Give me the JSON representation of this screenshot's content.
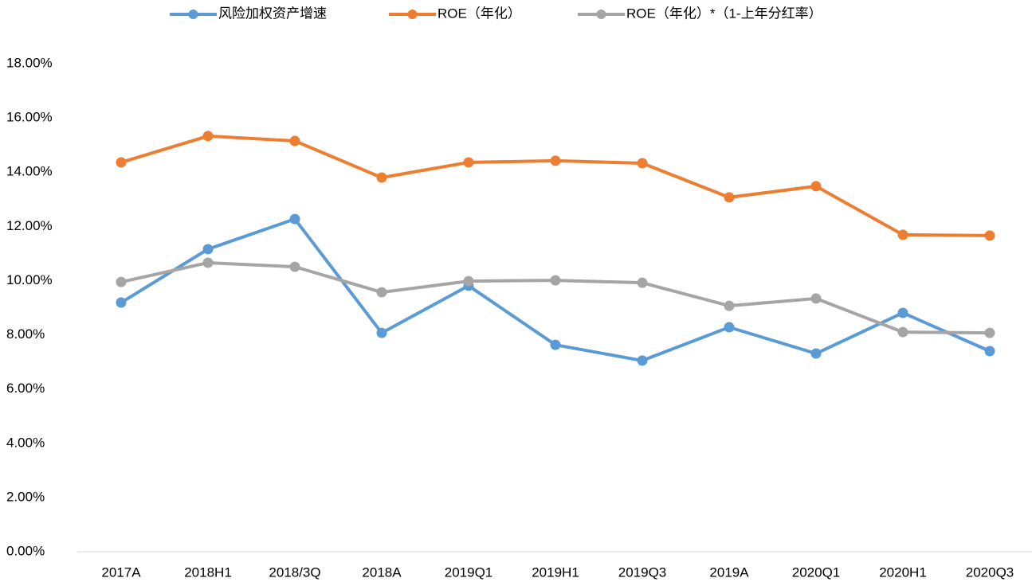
{
  "chart_data": {
    "type": "line",
    "categories": [
      "2017A",
      "2018H1",
      "2018/3Q",
      "2018A",
      "2019Q1",
      "2019H1",
      "2019Q3",
      "2019A",
      "2020Q1",
      "2020H1",
      "2020Q3"
    ],
    "series": [
      {
        "name": "风险加权资产增速",
        "color": "#5b9bd5",
        "values": [
          9.19,
          11.16,
          12.27,
          8.07,
          9.81,
          7.63,
          7.05,
          8.28,
          7.31,
          8.81,
          7.4
        ]
      },
      {
        "name": "ROE（年化）",
        "color": "#ed7d31",
        "values": [
          14.36,
          15.33,
          15.15,
          13.8,
          14.36,
          14.42,
          14.33,
          13.07,
          13.48,
          11.69,
          11.66
        ]
      },
      {
        "name": "ROE（年化）*（1-上年分红率）",
        "color": "#a5a5a5",
        "values": [
          9.95,
          10.66,
          10.51,
          9.57,
          9.98,
          10.01,
          9.92,
          9.07,
          9.34,
          8.1,
          8.07
        ]
      }
    ],
    "ylim": [
      0,
      18
    ],
    "yticks": [
      {
        "value": 0,
        "label": "0.00%"
      },
      {
        "value": 2,
        "label": "2.00%"
      },
      {
        "value": 4,
        "label": "4.00%"
      },
      {
        "value": 6,
        "label": "6.00%"
      },
      {
        "value": 8,
        "label": "8.00%"
      },
      {
        "value": 10,
        "label": "10.00%"
      },
      {
        "value": 12,
        "label": "12.00%"
      },
      {
        "value": 14,
        "label": "14.00%"
      },
      {
        "value": 16,
        "label": "16.00%"
      },
      {
        "value": 18,
        "label": "18.00%"
      }
    ],
    "grid": false,
    "legend": "top"
  }
}
